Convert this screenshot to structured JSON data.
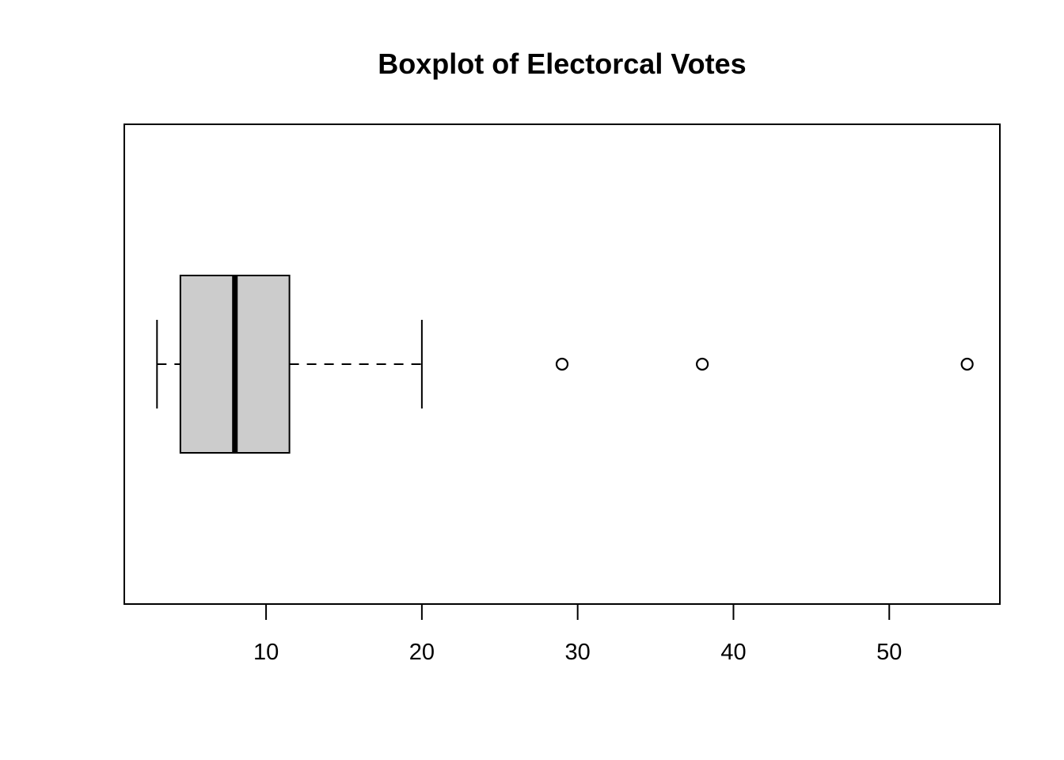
{
  "chart_data": {
    "type": "boxplot",
    "orientation": "horizontal",
    "title": "Boxplot of Electorcal Votes",
    "xlabel": "",
    "ylabel": "",
    "xlim": [
      0.9,
      57.1
    ],
    "x_ticks": [
      10,
      20,
      30,
      40,
      50
    ],
    "x_tick_labels": [
      "10",
      "20",
      "30",
      "40",
      "50"
    ],
    "stats": {
      "whisker_low": 3,
      "q1": 4.5,
      "median": 8,
      "q3": 11.5,
      "whisker_high": 20
    },
    "outliers": [
      29,
      38,
      55
    ],
    "box_fill": "#cccccc",
    "stroke": "#000000",
    "grid": false,
    "legend": "none"
  }
}
